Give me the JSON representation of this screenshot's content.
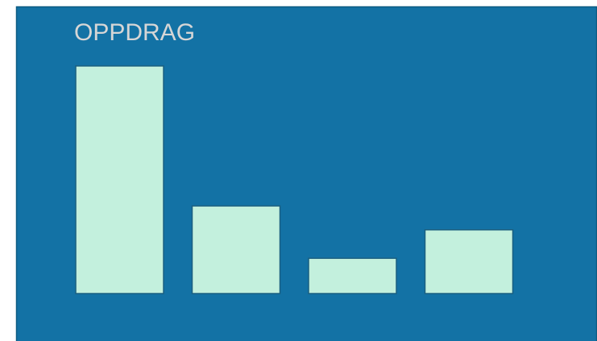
{
  "chart_data": {
    "type": "bar",
    "title": "OPPDRAG",
    "categories": [
      null,
      null,
      null,
      null
    ],
    "values": [
      100,
      38.5,
      15.5,
      28
    ],
    "color": "#c3f0dd",
    "ylim": [
      0,
      100
    ]
  }
}
